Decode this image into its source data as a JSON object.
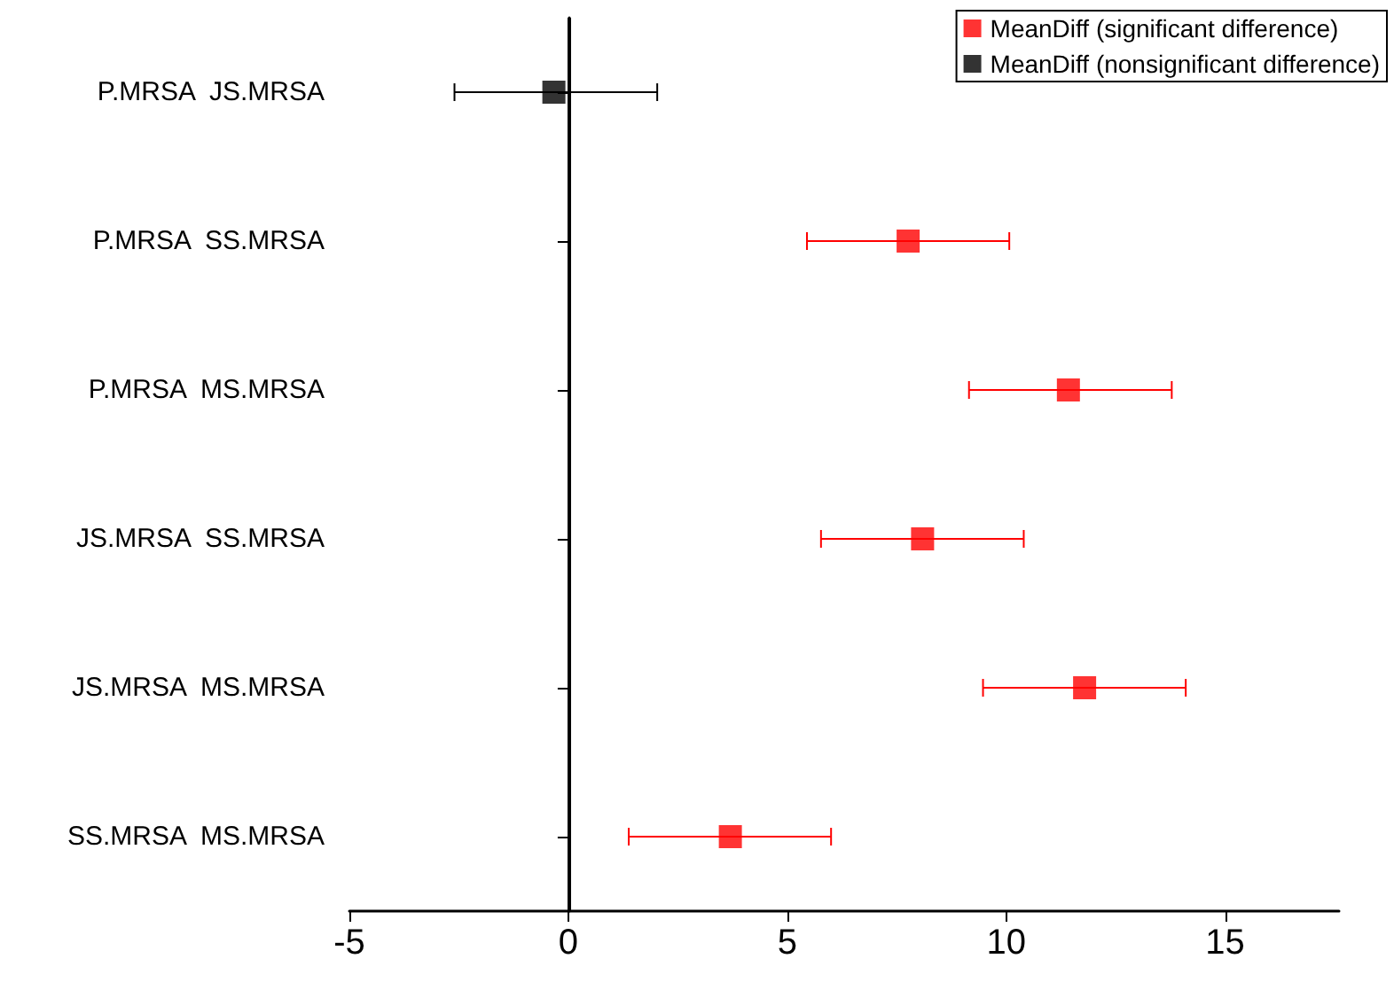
{
  "chart_data": {
    "type": "scatter",
    "orientation": "horizontal",
    "categories": [
      "P.MRSA  JS.MRSA",
      "P.MRSA  SS.MRSA",
      "P.MRSA  MS.MRSA",
      "JS.MRSA  SS.MRSA",
      "JS.MRSA  MS.MRSA",
      "SS.MRSA  MS.MRSA"
    ],
    "series": [
      {
        "name": "MeanDiff (significant difference)",
        "color": "#ff0000",
        "values": [
          null,
          7.76,
          11.42,
          8.09,
          11.79,
          3.7
        ],
        "errors": [
          null,
          [
            5.45,
            10.07
          ],
          [
            9.15,
            13.78
          ],
          [
            5.77,
            10.4
          ],
          [
            9.47,
            14.1
          ],
          [
            1.38,
            6.0
          ]
        ]
      },
      {
        "name": "MeanDiff (nonsignificant difference)",
        "color": "#000000",
        "values": [
          -0.33,
          null,
          null,
          null,
          null,
          null
        ],
        "errors": [
          [
            -2.6,
            2.03
          ],
          null,
          null,
          null,
          null,
          null
        ]
      }
    ],
    "xlim": [
      -5,
      17.6
    ],
    "xticks": [
      -5,
      0,
      5,
      10,
      15
    ],
    "ref_lines": [
      {
        "axis": "x",
        "value": 0,
        "label": null,
        "color": "#000000"
      }
    ],
    "marker": "square",
    "grid": false,
    "legend": "top right"
  }
}
